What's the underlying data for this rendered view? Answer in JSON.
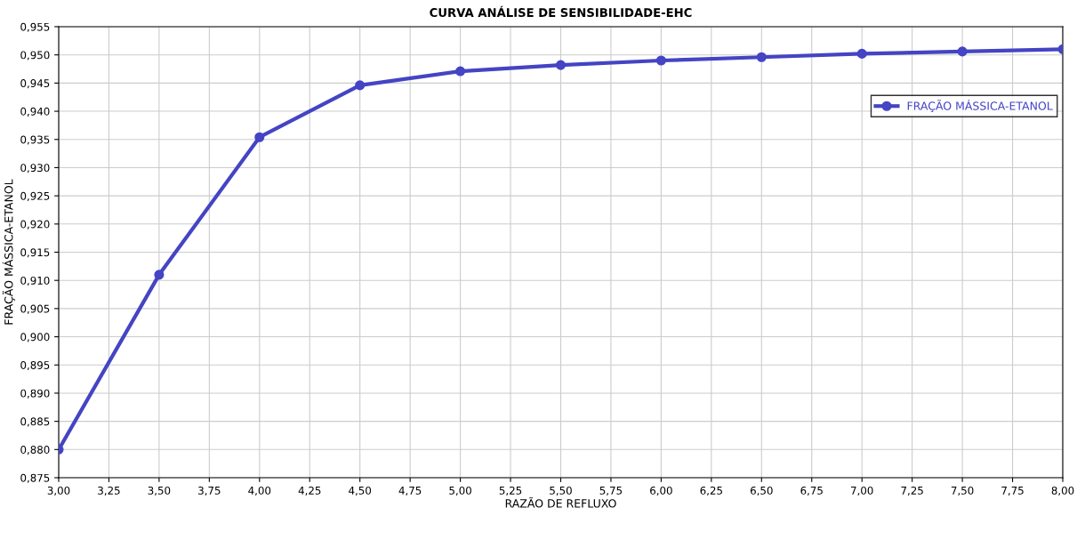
{
  "chart_data": {
    "type": "line",
    "title": "CURVA ANÁLISE DE SENSIBILIDADE-EHC",
    "xlabel": "RAZÃO DE REFLUXO",
    "ylabel": "FRAÇÃO MÁSSICA-ETANOL",
    "x": [
      3.0,
      3.5,
      4.0,
      4.5,
      5.0,
      5.5,
      6.0,
      6.5,
      7.0,
      7.5,
      8.0
    ],
    "series": [
      {
        "name": "FRAÇÃO MÁSSICA-ETANOL",
        "color": "#4444c4",
        "values": [
          0.88,
          0.911,
          0.9354,
          0.9446,
          0.9471,
          0.9482,
          0.949,
          0.9496,
          0.9502,
          0.9506,
          0.951
        ]
      }
    ],
    "xlim": [
      3.0,
      8.0
    ],
    "xticks": [
      {
        "value": 3.0,
        "label": "3,00"
      },
      {
        "value": 3.25,
        "label": "3,25"
      },
      {
        "value": 3.5,
        "label": "3,50"
      },
      {
        "value": 3.75,
        "label": "3,75"
      },
      {
        "value": 4.0,
        "label": "4,00"
      },
      {
        "value": 4.25,
        "label": "4,25"
      },
      {
        "value": 4.5,
        "label": "4,50"
      },
      {
        "value": 4.75,
        "label": "4,75"
      },
      {
        "value": 5.0,
        "label": "5,00"
      },
      {
        "value": 5.25,
        "label": "5,25"
      },
      {
        "value": 5.5,
        "label": "5,50"
      },
      {
        "value": 5.75,
        "label": "5,75"
      },
      {
        "value": 6.0,
        "label": "6,00"
      },
      {
        "value": 6.25,
        "label": "6,25"
      },
      {
        "value": 6.5,
        "label": "6,50"
      },
      {
        "value": 6.75,
        "label": "6,75"
      },
      {
        "value": 7.0,
        "label": "7,00"
      },
      {
        "value": 7.25,
        "label": "7,25"
      },
      {
        "value": 7.5,
        "label": "7,50"
      },
      {
        "value": 7.75,
        "label": "7,75"
      },
      {
        "value": 8.0,
        "label": "8,00"
      }
    ],
    "ylim": [
      0.875,
      0.955
    ],
    "yticks": [
      {
        "value": 0.875,
        "label": "0,875"
      },
      {
        "value": 0.88,
        "label": "0,880"
      },
      {
        "value": 0.885,
        "label": "0,885"
      },
      {
        "value": 0.89,
        "label": "0,890"
      },
      {
        "value": 0.895,
        "label": "0,895"
      },
      {
        "value": 0.9,
        "label": "0,900"
      },
      {
        "value": 0.905,
        "label": "0,905"
      },
      {
        "value": 0.91,
        "label": "0,910"
      },
      {
        "value": 0.915,
        "label": "0,915"
      },
      {
        "value": 0.92,
        "label": "0,920"
      },
      {
        "value": 0.925,
        "label": "0,925"
      },
      {
        "value": 0.93,
        "label": "0,930"
      },
      {
        "value": 0.935,
        "label": "0,935"
      },
      {
        "value": 0.94,
        "label": "0,940"
      },
      {
        "value": 0.945,
        "label": "0,945"
      },
      {
        "value": 0.95,
        "label": "0,950"
      },
      {
        "value": 0.955,
        "label": "0,955"
      }
    ],
    "grid": true,
    "legend": "top right",
    "marker": "circle",
    "line_style": "solid"
  }
}
